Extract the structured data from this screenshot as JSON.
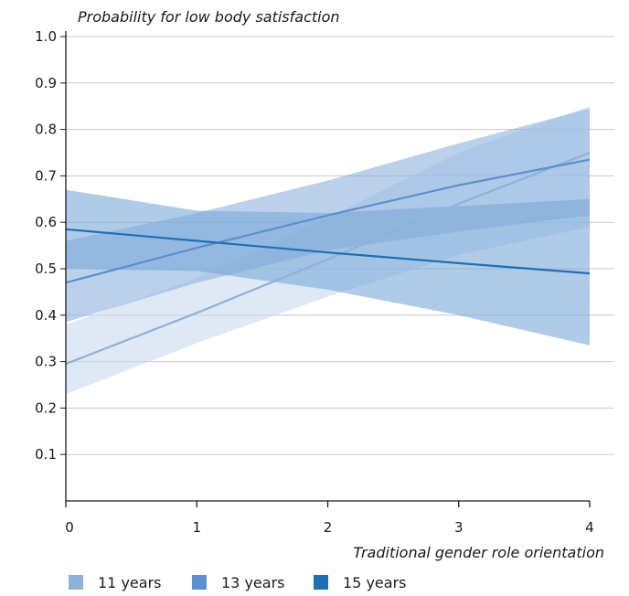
{
  "chart_data": {
    "type": "line",
    "ylabel": "Probability for low body satisfaction",
    "xlabel": "Traditional gender role orientation",
    "xlim": [
      0,
      4
    ],
    "ylim": [
      0,
      1.0
    ],
    "x_ticks": [
      "0",
      "1",
      "2",
      "3",
      "4"
    ],
    "y_ticks": [
      "0.1",
      "0.2",
      "0.3",
      "0.4",
      "0.5",
      "0.6",
      "0.7",
      "0.8",
      "0.9",
      "1.0"
    ],
    "grid": "horizontal",
    "legend_position": "bottom",
    "series": [
      {
        "name": "11 years",
        "color": "#8fb0da",
        "band_color": "#c9d8ef",
        "x": [
          0,
          1,
          2,
          3,
          4
        ],
        "y": [
          0.295,
          0.405,
          0.52,
          0.64,
          0.75
        ],
        "lower": [
          0.23,
          0.34,
          0.44,
          0.53,
          0.59
        ],
        "upper": [
          0.38,
          0.48,
          0.61,
          0.75,
          0.85
        ]
      },
      {
        "name": "13 years",
        "color": "#5b8fcf",
        "band_color": "#8eb3de",
        "x": [
          0,
          1,
          2,
          3,
          4
        ],
        "y": [
          0.47,
          0.545,
          0.615,
          0.68,
          0.735
        ],
        "lower": [
          0.385,
          0.47,
          0.54,
          0.58,
          0.615
        ],
        "upper": [
          0.56,
          0.62,
          0.69,
          0.77,
          0.845
        ]
      },
      {
        "name": "15 years",
        "color": "#1f6fb5",
        "band_color": "#7aa8d8",
        "x": [
          0,
          1,
          2,
          3,
          4
        ],
        "y": [
          0.585,
          0.56,
          0.535,
          0.512,
          0.49
        ],
        "lower": [
          0.5,
          0.495,
          0.455,
          0.4,
          0.335
        ],
        "upper": [
          0.67,
          0.625,
          0.62,
          0.635,
          0.65
        ]
      }
    ]
  }
}
